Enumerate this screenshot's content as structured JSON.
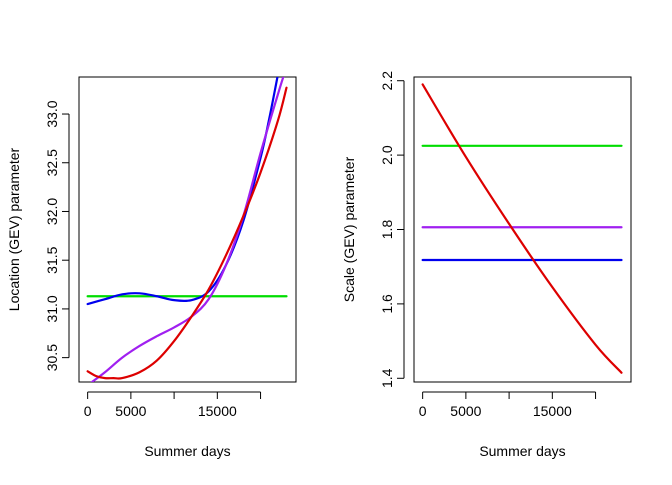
{
  "chart_data": [
    {
      "type": "line",
      "xlabel": "Summer days",
      "ylabel": "Location (GEV) parameter",
      "xlim": [
        -1000,
        24100
      ],
      "ylim": [
        30.25,
        33.38
      ],
      "xticks": [
        {
          "value": 0,
          "label": "0"
        },
        {
          "value": 5000,
          "label": "5000"
        },
        {
          "value": 10000,
          "label": ""
        },
        {
          "value": 15000,
          "label": "15000"
        },
        {
          "value": 20000,
          "label": ""
        }
      ],
      "yticks": [
        {
          "value": 30.5,
          "label": "30.5"
        },
        {
          "value": 31.0,
          "label": "31.0"
        },
        {
          "value": 31.5,
          "label": "31.5"
        },
        {
          "value": 32.0,
          "label": "32.0"
        },
        {
          "value": 32.5,
          "label": "32.5"
        },
        {
          "value": 33.0,
          "label": "33.0"
        }
      ],
      "grid": false,
      "series": [
        {
          "color": "#00dd00",
          "x": [
            0,
            23000
          ],
          "y": [
            31.13,
            31.13
          ]
        },
        {
          "color": "#0000ee",
          "x": [
            0,
            2000,
            4000,
            6000,
            8000,
            10000,
            12000,
            14000,
            16000,
            18000,
            20000,
            21000,
            22000
          ],
          "y": [
            31.05,
            31.1,
            31.15,
            31.16,
            31.13,
            31.09,
            31.09,
            31.18,
            31.45,
            31.9,
            32.55,
            32.95,
            33.4
          ]
        },
        {
          "color": "#a020f0",
          "x": [
            500,
            2000,
            4000,
            6000,
            8000,
            10000,
            12000,
            14000,
            16000,
            18000,
            20000,
            22000,
            22700
          ],
          "y": [
            30.25,
            30.35,
            30.5,
            30.62,
            30.72,
            30.81,
            30.92,
            31.1,
            31.45,
            31.95,
            32.6,
            33.2,
            33.4
          ]
        },
        {
          "color": "#dd0000",
          "x": [
            0,
            1000,
            2000,
            3000,
            4000,
            6000,
            8000,
            10000,
            12000,
            14000,
            16000,
            18000,
            20000,
            22000,
            23000
          ],
          "y": [
            30.36,
            30.31,
            30.29,
            30.29,
            30.29,
            30.35,
            30.47,
            30.67,
            30.92,
            31.2,
            31.55,
            31.95,
            32.4,
            32.93,
            33.27
          ]
        }
      ]
    },
    {
      "type": "line",
      "xlabel": "Summer days",
      "ylabel": "Scale (GEV) parameter",
      "xlim": [
        -1000,
        24100
      ],
      "ylim": [
        1.39,
        2.21
      ],
      "xticks": [
        {
          "value": 0,
          "label": "0"
        },
        {
          "value": 5000,
          "label": "5000"
        },
        {
          "value": 10000,
          "label": ""
        },
        {
          "value": 15000,
          "label": "15000"
        },
        {
          "value": 20000,
          "label": ""
        }
      ],
      "yticks": [
        {
          "value": 1.4,
          "label": "1.4"
        },
        {
          "value": 1.6,
          "label": "1.6"
        },
        {
          "value": 1.8,
          "label": "1.8"
        },
        {
          "value": 2.0,
          "label": "2.0"
        },
        {
          "value": 2.2,
          "label": "2.2"
        }
      ],
      "grid": false,
      "series": [
        {
          "color": "#00dd00",
          "x": [
            0,
            23000
          ],
          "y": [
            2.025,
            2.025
          ]
        },
        {
          "color": "#a020f0",
          "x": [
            0,
            23000
          ],
          "y": [
            1.806,
            1.806
          ]
        },
        {
          "color": "#0000ee",
          "x": [
            0,
            23000
          ],
          "y": [
            1.718,
            1.718
          ]
        },
        {
          "color": "#dd0000",
          "x": [
            0,
            5000,
            10000,
            15000,
            20000,
            23000
          ],
          "y": [
            2.19,
            1.995,
            1.815,
            1.645,
            1.49,
            1.415
          ]
        }
      ]
    }
  ]
}
